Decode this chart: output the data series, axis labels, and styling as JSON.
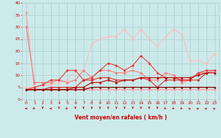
{
  "title": "",
  "xlabel": "Vent moyen/en rafales ( km/h )",
  "bg_color": "#cceaea",
  "grid_color": "#aacccc",
  "text_color": "#cc0000",
  "xlim": [
    -0.5,
    23.5
  ],
  "ylim": [
    0,
    40
  ],
  "yticks": [
    0,
    5,
    10,
    15,
    20,
    25,
    30,
    35,
    40
  ],
  "xticks": [
    0,
    1,
    2,
    3,
    4,
    5,
    6,
    7,
    8,
    9,
    10,
    11,
    12,
    13,
    14,
    15,
    16,
    17,
    18,
    19,
    20,
    21,
    22,
    23
  ],
  "lines": [
    {
      "x": [
        0,
        1,
        2,
        3,
        4,
        5,
        6,
        7,
        8,
        9,
        10,
        11,
        12,
        13,
        14,
        15,
        16,
        17,
        18,
        19,
        20,
        21,
        22,
        23
      ],
      "y": [
        36,
        4,
        4,
        4,
        4,
        4,
        4,
        4,
        4,
        4,
        4,
        4,
        4,
        4,
        4,
        4,
        4,
        4,
        4,
        4,
        4,
        4,
        4,
        4
      ],
      "color": "#ff9999",
      "lw": 0.8,
      "marker": "D",
      "ms": 1.8
    },
    {
      "x": [
        0,
        1,
        2,
        3,
        4,
        5,
        6,
        7,
        8,
        9,
        10,
        11,
        12,
        13,
        14,
        15,
        16,
        17,
        18,
        19,
        20,
        21,
        22,
        23
      ],
      "y": [
        5,
        5,
        6,
        6,
        7,
        8,
        12,
        12,
        23,
        25,
        26,
        26,
        29,
        25,
        29,
        25,
        22,
        26,
        29,
        27,
        16,
        16,
        15,
        19
      ],
      "color": "#ffbbbb",
      "lw": 0.8,
      "marker": "D",
      "ms": 1.8
    },
    {
      "x": [
        0,
        1,
        2,
        3,
        4,
        5,
        6,
        7,
        8,
        9,
        10,
        11,
        12,
        13,
        14,
        15,
        16,
        17,
        18,
        19,
        20,
        21,
        22,
        23
      ],
      "y": [
        30,
        7,
        7,
        7,
        8,
        7,
        8,
        12,
        9,
        12,
        12,
        11,
        11,
        12,
        11,
        8,
        8,
        11,
        10,
        7,
        8,
        11,
        11,
        12
      ],
      "color": "#ff7777",
      "lw": 0.8,
      "marker": "D",
      "ms": 1.8
    },
    {
      "x": [
        0,
        1,
        2,
        3,
        4,
        5,
        6,
        7,
        8,
        9,
        10,
        11,
        12,
        13,
        14,
        15,
        16,
        17,
        18,
        19,
        20,
        21,
        22,
        23
      ],
      "y": [
        4,
        5,
        6,
        8,
        8,
        12,
        12,
        8,
        9,
        12,
        15,
        14,
        12,
        14,
        18,
        15,
        11,
        9,
        9,
        8,
        8,
        11,
        12,
        12
      ],
      "color": "#ee3333",
      "lw": 0.8,
      "marker": "D",
      "ms": 1.8
    },
    {
      "x": [
        0,
        1,
        2,
        3,
        4,
        5,
        6,
        7,
        8,
        9,
        10,
        11,
        12,
        13,
        14,
        15,
        16,
        17,
        18,
        19,
        20,
        21,
        22,
        23
      ],
      "y": [
        4,
        4,
        4,
        5,
        5,
        5,
        5,
        8,
        8,
        9,
        9,
        8,
        8,
        8,
        9,
        8,
        5,
        8,
        8,
        8,
        8,
        8,
        11,
        11
      ],
      "color": "#dd2222",
      "lw": 0.8,
      "marker": "D",
      "ms": 1.8
    },
    {
      "x": [
        0,
        1,
        2,
        3,
        4,
        5,
        6,
        7,
        8,
        9,
        10,
        11,
        12,
        13,
        14,
        15,
        16,
        17,
        18,
        19,
        20,
        21,
        22,
        23
      ],
      "y": [
        4,
        4,
        4,
        4,
        4,
        4,
        5,
        5,
        7,
        7,
        8,
        7,
        8,
        8,
        9,
        9,
        9,
        9,
        9,
        9,
        9,
        10,
        11,
        11
      ],
      "color": "#bb1111",
      "lw": 0.9,
      "marker": "D",
      "ms": 1.8
    },
    {
      "x": [
        0,
        1,
        2,
        3,
        4,
        5,
        6,
        7,
        8,
        9,
        10,
        11,
        12,
        13,
        14,
        15,
        16,
        17,
        18,
        19,
        20,
        21,
        22,
        23
      ],
      "y": [
        4,
        4,
        4,
        4,
        4,
        4,
        4,
        4,
        5,
        5,
        5,
        5,
        5,
        5,
        5,
        5,
        5,
        5,
        5,
        5,
        5,
        5,
        5,
        5
      ],
      "color": "#880000",
      "lw": 0.9,
      "marker": "D",
      "ms": 1.5
    }
  ],
  "wind_arrows": {
    "x": [
      0,
      1,
      2,
      3,
      4,
      5,
      6,
      7,
      8,
      9,
      10,
      11,
      12,
      13,
      14,
      15,
      16,
      17,
      18,
      19,
      20,
      21,
      22,
      23
    ],
    "angles": [
      180,
      315,
      270,
      180,
      270,
      315,
      270,
      270,
      270,
      270,
      270,
      270,
      270,
      270,
      270,
      270,
      270,
      315,
      315,
      315,
      45,
      45,
      45,
      45
    ]
  }
}
